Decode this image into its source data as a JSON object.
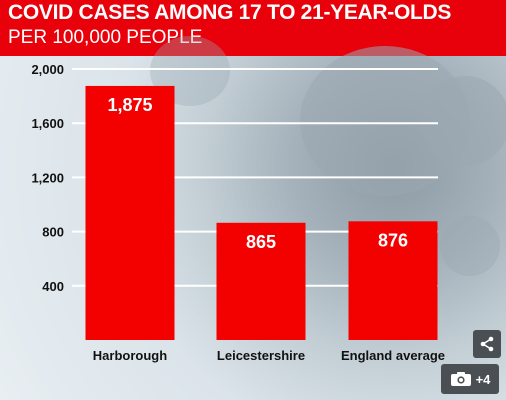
{
  "colors": {
    "header": "#e8000b",
    "bar": "#f30000",
    "text": "#111111",
    "grid": "#ffffff"
  },
  "chart_data": {
    "type": "bar",
    "title": "COVID CASES AMONG 17 TO 21-YEAR-OLDS",
    "subtitle": "PER 100,000 PEOPLE",
    "categories": [
      "Harborough",
      "Leicestershire",
      "England average"
    ],
    "values": [
      1875,
      865,
      876
    ],
    "value_labels": [
      "1,875",
      "865",
      "876"
    ],
    "yticks": [
      400,
      800,
      1200,
      1600,
      2000
    ],
    "ytick_labels": [
      "400",
      "800",
      "1,200",
      "1,600",
      "2,000"
    ],
    "ylim": [
      0,
      2000
    ],
    "grid": true,
    "xlabel": "",
    "ylabel": ""
  },
  "controls": {
    "share_icon": "share-icon",
    "gallery_icon": "camera-icon",
    "gallery_count": "+4"
  }
}
